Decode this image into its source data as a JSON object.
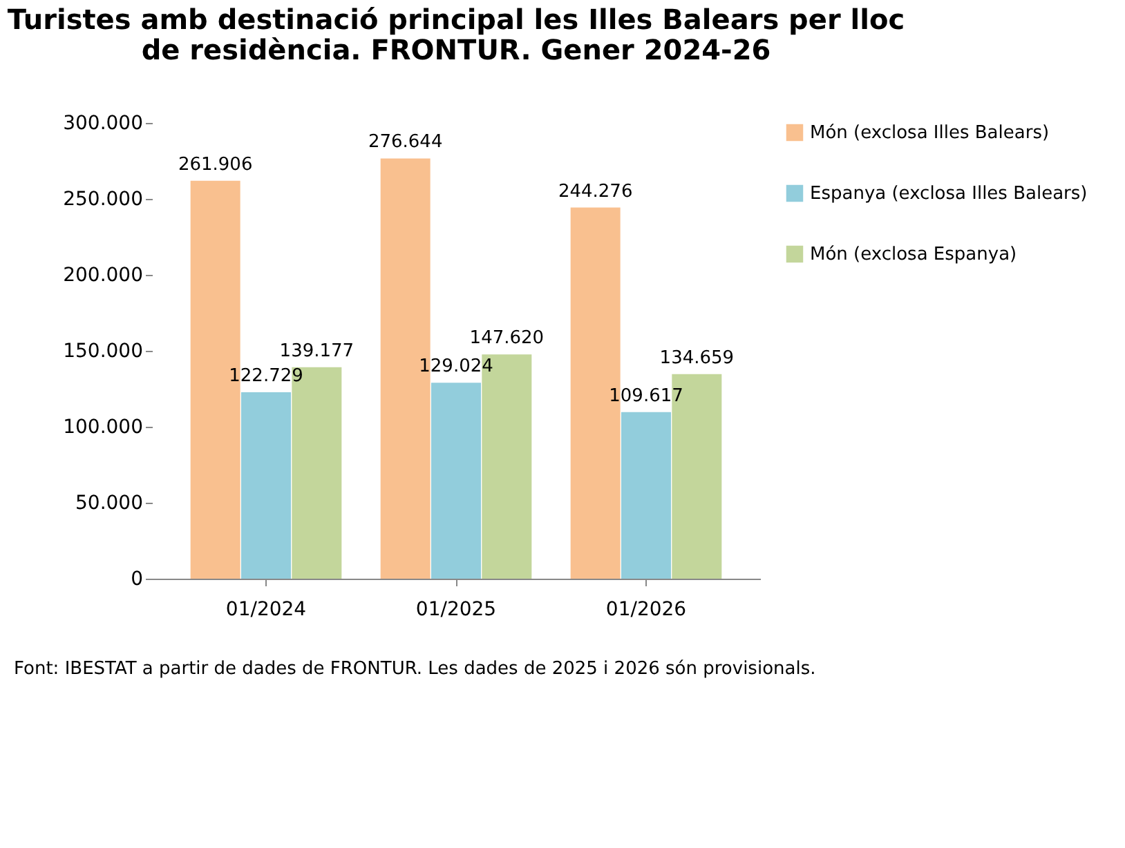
{
  "chart_data": {
    "type": "bar",
    "title": "Turistes amb destinació principal les Illes Balears per lloc de residència. FRONTUR. Gener 2024-26",
    "categories": [
      "01/2024",
      "01/2025",
      "01/2026"
    ],
    "series": [
      {
        "name": "Món (exclosa Illes Balears)",
        "color": "#f9c08f",
        "values": [
          261906,
          276644,
          244276
        ],
        "value_labels": [
          "261.906",
          "276.644",
          "244.276"
        ]
      },
      {
        "name": "Espanya (exclosa Illes Balears)",
        "color": "#92cddc",
        "values": [
          122729,
          129024,
          109617
        ],
        "value_labels": [
          "122.729",
          "129.024",
          "109.617"
        ]
      },
      {
        "name": "Món (exclosa Espanya)",
        "color": "#c3d69b",
        "values": [
          139177,
          147620,
          134659
        ],
        "value_labels": [
          "139.177",
          "147.620",
          "134.659"
        ]
      }
    ],
    "ylim": [
      0,
      300000
    ],
    "yticks": [
      0,
      {
        "value": 50000,
        "label": "50.000"
      },
      {
        "value": 100000,
        "label": "100.000"
      },
      {
        "value": 150000,
        "label": "150.000"
      },
      {
        "value": 200000,
        "label": "200.000"
      },
      {
        "value": 250000,
        "label": "250.000"
      },
      {
        "value": 300000,
        "label": "300.000"
      }
    ],
    "grid": false,
    "legend": "right",
    "annotations": [
      "Font: IBESTAT a partir de dades de FRONTUR. Les dades de 2025 i 2026 són provisionals."
    ]
  }
}
